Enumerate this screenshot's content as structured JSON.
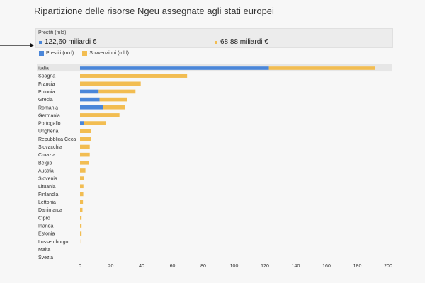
{
  "title": "Ripartizione delle risorse Ngeu assegnate agli stati europei",
  "tooltip": {
    "header": "Prestiti (mld)",
    "prestiti_value": "122,60 miliardi €",
    "sovvenzioni_value": "68,88 miliardi €"
  },
  "colors": {
    "prestiti": "#4a86d9",
    "sovvenzioni": "#f2bd52",
    "hover": "#e6e6e6"
  },
  "chart_data": {
    "type": "bar",
    "orientation": "horizontal",
    "stacked": true,
    "title": "Ripartizione delle risorse Ngeu assegnate agli stati europei",
    "categories": [
      "Italia",
      "Spagna",
      "Francia",
      "Polonia",
      "Grecia",
      "Romania",
      "Germania",
      "Portogallo",
      "Ungheria",
      "Repubblica Ceca",
      "Slovacchia",
      "Croazia",
      "Belgio",
      "Austria",
      "Slovenia",
      "Lituania",
      "Finlandia",
      "Lettonia",
      "Danimarca",
      "Cipro",
      "Irlanda",
      "Estonia",
      "Lussemburgo",
      "Malta",
      "Svezia"
    ],
    "series": [
      {
        "name": "Prestiti (mld)",
        "values": [
          122.6,
          0,
          0,
          12.1,
          12.7,
          14.9,
          0,
          2.7,
          0,
          0,
          0,
          0,
          0,
          0,
          0,
          0,
          0,
          0,
          0,
          0,
          0,
          0,
          0,
          0,
          0
        ]
      },
      {
        "name": "Sovvenzioni (mld)",
        "values": [
          68.88,
          69.5,
          39.4,
          23.9,
          17.8,
          14.2,
          25.6,
          13.9,
          7.2,
          7.1,
          6.3,
          6.3,
          5.9,
          3.5,
          2.3,
          2.2,
          2.1,
          1.9,
          1.6,
          1.0,
          1.0,
          1.0,
          0.1,
          0.0,
          0.0
        ]
      }
    ],
    "xlim": [
      0,
      200
    ],
    "xticks": [
      0,
      20,
      40,
      60,
      80,
      100,
      120,
      140,
      160,
      180,
      200
    ],
    "grid": false,
    "legend": "top-left"
  }
}
